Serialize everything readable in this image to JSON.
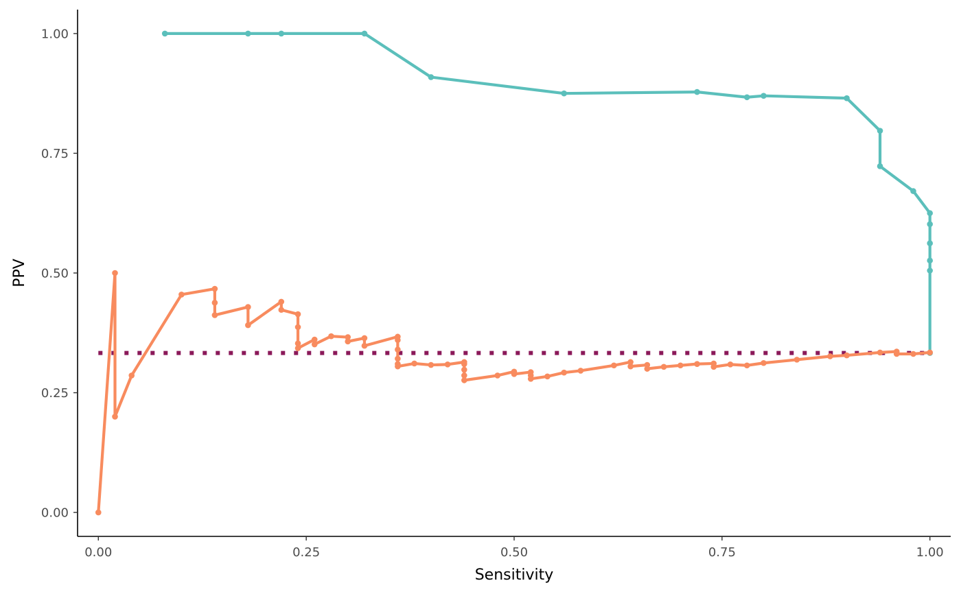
{
  "chart_data": {
    "type": "line",
    "xlabel": "Sensitivity",
    "ylabel": "PPV",
    "xlim": [
      -0.025,
      1.025
    ],
    "ylim": [
      -0.05,
      1.05
    ],
    "x_ticks": [
      0,
      0.25,
      0.5,
      0.75,
      1
    ],
    "y_ticks": [
      0,
      0.25,
      0.5,
      0.75,
      1
    ],
    "x_tick_labels": [
      "0.00",
      "0.25",
      "0.50",
      "0.75",
      "1.00"
    ],
    "y_tick_labels": [
      "0.00",
      "0.25",
      "0.50",
      "0.75",
      "1.00"
    ],
    "grid": false,
    "legend": "none",
    "reference_line": {
      "y": 0.333,
      "x_range": [
        0,
        1
      ],
      "color": "#8b1a5a",
      "style": "dotted"
    },
    "series": [
      {
        "color": "#5bbfbb",
        "points": [
          [
            0.08,
            1.0
          ],
          [
            0.18,
            1.0
          ],
          [
            0.22,
            1.0
          ],
          [
            0.32,
            1.0
          ],
          [
            0.4,
            0.909
          ],
          [
            0.56,
            0.875
          ],
          [
            0.72,
            0.878
          ],
          [
            0.78,
            0.867
          ],
          [
            0.8,
            0.87
          ],
          [
            0.9,
            0.865
          ],
          [
            0.94,
            0.797
          ],
          [
            0.94,
            0.723
          ],
          [
            0.98,
            0.671
          ],
          [
            1.0,
            0.625
          ],
          [
            1.0,
            0.602
          ],
          [
            1.0,
            0.562
          ],
          [
            1.0,
            0.526
          ],
          [
            1.0,
            0.505
          ],
          [
            1.0,
            0.333
          ]
        ]
      },
      {
        "color": "#f88b5e",
        "points": [
          [
            0.0,
            0.0
          ],
          [
            0.02,
            0.5
          ],
          [
            0.02,
            0.2
          ],
          [
            0.04,
            0.286
          ],
          [
            0.1,
            0.455
          ],
          [
            0.14,
            0.467
          ],
          [
            0.14,
            0.438
          ],
          [
            0.14,
            0.412
          ],
          [
            0.18,
            0.429
          ],
          [
            0.18,
            0.391
          ],
          [
            0.22,
            0.44
          ],
          [
            0.22,
            0.423
          ],
          [
            0.24,
            0.414
          ],
          [
            0.24,
            0.387
          ],
          [
            0.24,
            0.353
          ],
          [
            0.24,
            0.343
          ],
          [
            0.26,
            0.361
          ],
          [
            0.26,
            0.351
          ],
          [
            0.28,
            0.368
          ],
          [
            0.3,
            0.366
          ],
          [
            0.3,
            0.357
          ],
          [
            0.32,
            0.364
          ],
          [
            0.32,
            0.348
          ],
          [
            0.36,
            0.367
          ],
          [
            0.36,
            0.36
          ],
          [
            0.36,
            0.34
          ],
          [
            0.36,
            0.321
          ],
          [
            0.36,
            0.31
          ],
          [
            0.36,
            0.305
          ],
          [
            0.38,
            0.311
          ],
          [
            0.4,
            0.308
          ],
          [
            0.42,
            0.309
          ],
          [
            0.44,
            0.314
          ],
          [
            0.44,
            0.31
          ],
          [
            0.44,
            0.298
          ],
          [
            0.44,
            0.286
          ],
          [
            0.44,
            0.276
          ],
          [
            0.48,
            0.286
          ],
          [
            0.5,
            0.294
          ],
          [
            0.5,
            0.289
          ],
          [
            0.52,
            0.293
          ],
          [
            0.52,
            0.286
          ],
          [
            0.52,
            0.279
          ],
          [
            0.54,
            0.284
          ],
          [
            0.56,
            0.292
          ],
          [
            0.58,
            0.296
          ],
          [
            0.62,
            0.307
          ],
          [
            0.64,
            0.314
          ],
          [
            0.64,
            0.305
          ],
          [
            0.66,
            0.308
          ],
          [
            0.66,
            0.3
          ],
          [
            0.68,
            0.304
          ],
          [
            0.7,
            0.307
          ],
          [
            0.72,
            0.31
          ],
          [
            0.74,
            0.311
          ],
          [
            0.74,
            0.304
          ],
          [
            0.76,
            0.309
          ],
          [
            0.78,
            0.307
          ],
          [
            0.8,
            0.312
          ],
          [
            0.84,
            0.319
          ],
          [
            0.88,
            0.326
          ],
          [
            0.9,
            0.328
          ],
          [
            0.94,
            0.334
          ],
          [
            0.96,
            0.336
          ],
          [
            0.96,
            0.331
          ],
          [
            0.98,
            0.331
          ],
          [
            1.0,
            0.334
          ]
        ]
      }
    ]
  }
}
